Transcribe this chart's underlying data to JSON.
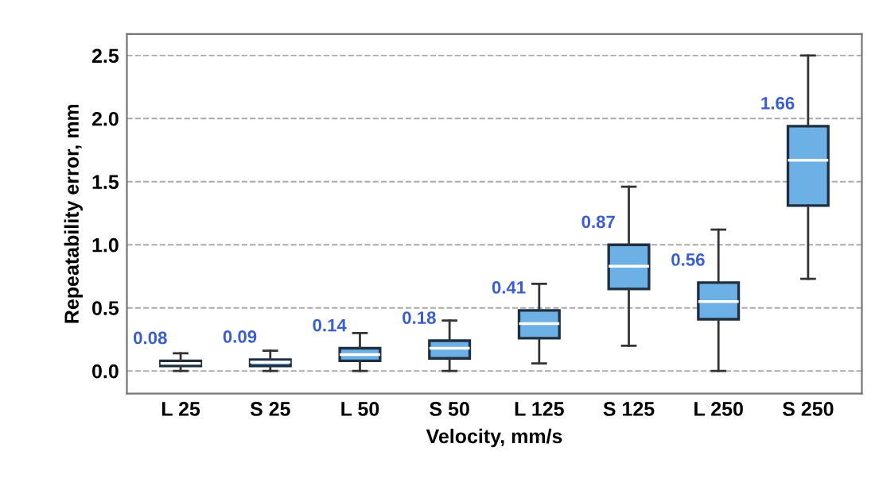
{
  "chart_data": {
    "type": "box",
    "xlabel": "Velocity, mm/s",
    "ylabel": "Repeatability error, mm",
    "categories": [
      "L 25",
      "S 25",
      "L 50",
      "S 50",
      "L 125",
      "S 125",
      "L 250",
      "S 250"
    ],
    "series": [
      {
        "color": "#6cb0e6",
        "boxes": [
          {
            "low": 0,
            "q1": 0.04,
            "median": 0.06,
            "q3": 0.08,
            "high": 0.14
          },
          {
            "low": 0,
            "q1": 0.04,
            "median": 0.07,
            "q3": 0.09,
            "high": 0.16
          },
          {
            "low": 0,
            "q1": 0.08,
            "median": 0.13,
            "q3": 0.18,
            "high": 0.3
          },
          {
            "low": 0,
            "q1": 0.1,
            "median": 0.18,
            "q3": 0.24,
            "high": 0.4
          },
          {
            "low": 0.06,
            "q1": 0.26,
            "median": 0.375,
            "q3": 0.48,
            "high": 0.69
          },
          {
            "low": 0.2,
            "q1": 0.65,
            "median": 0.83,
            "q3": 1.0,
            "high": 1.46
          },
          {
            "low": 0,
            "q1": 0.41,
            "median": 0.55,
            "q3": 0.7,
            "high": 1.12
          },
          {
            "low": 0.73,
            "q1": 1.31,
            "median": 1.67,
            "q3": 1.94,
            "high": 2.5
          }
        ]
      }
    ],
    "annotations": [
      {
        "text": "0.08",
        "x": "L 25",
        "y": 0.08
      },
      {
        "text": "0.09",
        "x": "S 25",
        "y": 0.09
      },
      {
        "text": "0.14",
        "x": "L 50",
        "y": 0.18
      },
      {
        "text": "0.18",
        "x": "S 50",
        "y": 0.24
      },
      {
        "text": "0.41",
        "x": "L 125",
        "y": 0.48
      },
      {
        "text": "0.87",
        "x": "S 125",
        "y": 1.0
      },
      {
        "text": "0.56",
        "x": "L 250",
        "y": 0.7
      },
      {
        "text": "1.66",
        "x": "S 250",
        "y": 1.94
      }
    ],
    "ylim": [
      -0.18,
      2.67
    ],
    "yticks": [
      {
        "value": 0,
        "label": "0.0"
      },
      {
        "value": 0.5,
        "label": "0.5"
      },
      {
        "value": 1,
        "label": "1.0"
      },
      {
        "value": 1.5,
        "label": "1.5"
      },
      {
        "value": 2,
        "label": "2.0"
      },
      {
        "value": 2.5,
        "label": "2.5"
      }
    ],
    "grid": "y"
  }
}
